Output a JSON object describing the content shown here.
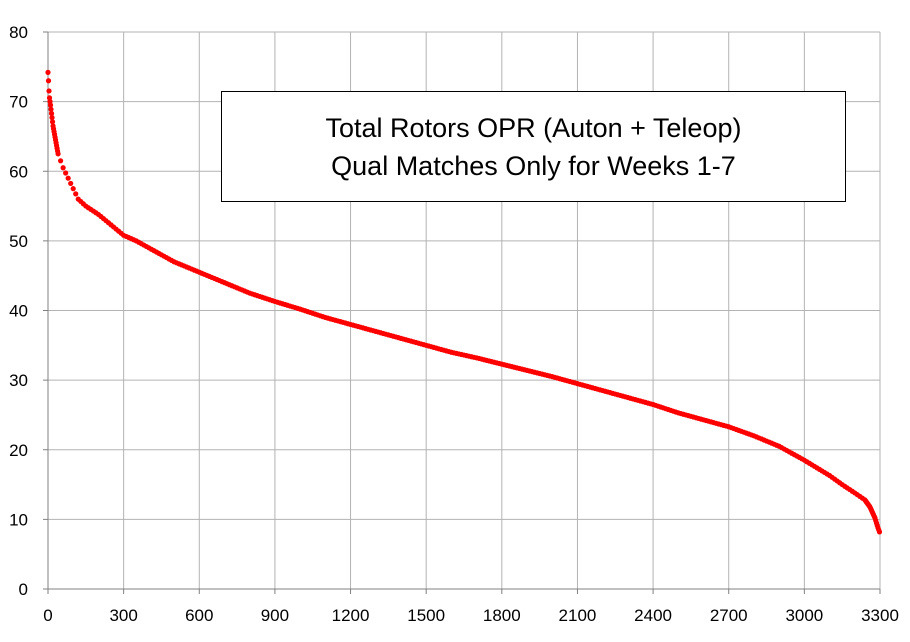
{
  "chart_data": {
    "type": "scatter",
    "title_lines": [
      "Total Rotors OPR (Auton + Teleop)",
      "Qual Matches Only for Weeks 1-7"
    ],
    "xlabel": "",
    "ylabel": "",
    "xlim": [
      0,
      3300
    ],
    "ylim": [
      0,
      80
    ],
    "xticks": [
      0,
      300,
      600,
      900,
      1200,
      1500,
      1800,
      2100,
      2400,
      2700,
      3000,
      3300
    ],
    "yticks": [
      0,
      10,
      20,
      30,
      40,
      50,
      60,
      70,
      80
    ],
    "grid": true,
    "legend": "none",
    "marker_color": "#ff0000",
    "grid_color": "#b3b3b3",
    "axis_color": "#808080",
    "curve_points": [
      [
        0,
        74.2
      ],
      [
        2,
        73
      ],
      [
        5,
        70.8
      ],
      [
        10,
        69.5
      ],
      [
        15,
        68
      ],
      [
        20,
        66.5
      ],
      [
        30,
        64.5
      ],
      [
        40,
        62.5
      ],
      [
        60,
        60.5
      ],
      [
        80,
        59
      ],
      [
        100,
        57.5
      ],
      [
        120,
        56
      ],
      [
        150,
        55
      ],
      [
        200,
        53.8
      ],
      [
        250,
        52.3
      ],
      [
        300,
        50.8
      ],
      [
        350,
        50
      ],
      [
        400,
        49
      ],
      [
        450,
        48
      ],
      [
        500,
        47
      ],
      [
        600,
        45.5
      ],
      [
        700,
        44
      ],
      [
        800,
        42.5
      ],
      [
        900,
        41.3
      ],
      [
        1000,
        40.2
      ],
      [
        1100,
        39
      ],
      [
        1200,
        38
      ],
      [
        1300,
        37
      ],
      [
        1400,
        36
      ],
      [
        1500,
        35
      ],
      [
        1600,
        34
      ],
      [
        1700,
        33.2
      ],
      [
        1800,
        32.3
      ],
      [
        1900,
        31.4
      ],
      [
        2000,
        30.5
      ],
      [
        2100,
        29.5
      ],
      [
        2200,
        28.5
      ],
      [
        2300,
        27.5
      ],
      [
        2400,
        26.5
      ],
      [
        2500,
        25.3
      ],
      [
        2600,
        24.3
      ],
      [
        2700,
        23.3
      ],
      [
        2800,
        22
      ],
      [
        2900,
        20.5
      ],
      [
        3000,
        18.5
      ],
      [
        3100,
        16.3
      ],
      [
        3150,
        15
      ],
      [
        3200,
        13.8
      ],
      [
        3240,
        12.8
      ],
      [
        3260,
        11.8
      ],
      [
        3280,
        10.2
      ],
      [
        3290,
        9
      ],
      [
        3300,
        8
      ]
    ],
    "point_step": 10
  }
}
